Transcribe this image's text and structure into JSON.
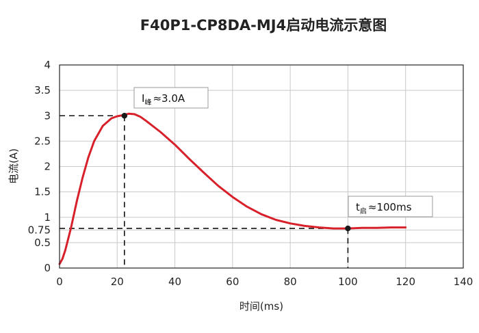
{
  "chart_data": {
    "type": "line",
    "title": "F40P1-CP8DA-MJ4启动电流示意图",
    "xlabel": "时间(ms)",
    "ylabel": "电流(A)",
    "xlim": [
      0,
      140
    ],
    "ylim": [
      0,
      4
    ],
    "x_ticks": [
      "0",
      "20",
      "40",
      "60",
      "80",
      "100",
      "120",
      "140"
    ],
    "y_ticks": [
      "0",
      "0.5",
      "0.75",
      "1",
      "1.5",
      "2",
      "2.5",
      "3",
      "3.5",
      "4"
    ],
    "grid": true,
    "series": [
      {
        "color": "#d8202a",
        "x": [
          0,
          1,
          2,
          4,
          6,
          8,
          10,
          12,
          15,
          18,
          20,
          22,
          24,
          26,
          28,
          30,
          35,
          40,
          45,
          50,
          55,
          60,
          65,
          70,
          75,
          80,
          85,
          90,
          95,
          100,
          105,
          110,
          115,
          120
        ],
        "y": [
          0.08,
          0.18,
          0.35,
          0.8,
          1.32,
          1.78,
          2.18,
          2.5,
          2.8,
          2.95,
          2.99,
          3.01,
          3.04,
          3.03,
          2.98,
          2.9,
          2.68,
          2.43,
          2.15,
          1.88,
          1.62,
          1.4,
          1.21,
          1.06,
          0.95,
          0.88,
          0.83,
          0.8,
          0.78,
          0.78,
          0.79,
          0.79,
          0.8,
          0.8
        ]
      }
    ],
    "annotations": [
      {
        "name": "peak",
        "point": [
          22.5,
          3.0
        ],
        "prefix": "I",
        "subscript": "峰",
        "text": "≈3.0A"
      },
      {
        "name": "start",
        "point": [
          100,
          0.78
        ],
        "prefix": "t",
        "subscript": "启",
        "text": "≈100ms"
      }
    ]
  }
}
